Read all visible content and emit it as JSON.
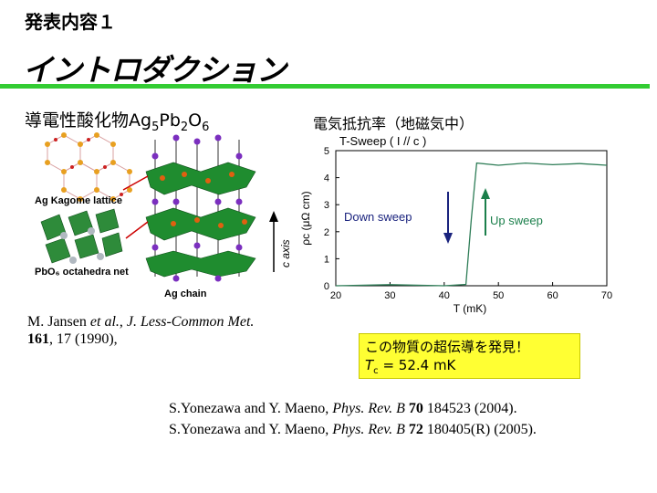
{
  "header": {
    "label": "発表内容１"
  },
  "slide": {
    "title": "イントロダクション",
    "compound": {
      "prefix": "導電性酸化物",
      "formula": [
        [
          "Ag",
          "5"
        ],
        [
          "Pb",
          "2"
        ],
        [
          "O",
          "6"
        ]
      ]
    },
    "graph_title": "電気抵抗率（地磁気中）",
    "crystal_labels": {
      "kagome": "Ag Kagome lattice",
      "octahedra": "PbO₆ octahedra net",
      "c_axis": "c axis",
      "chain": "Ag chain"
    },
    "reference_jansen": {
      "authors": "M. Jansen ",
      "etal": "et al.",
      "sep1": ", ",
      "journal": "J. Less-Common Met.",
      "volume": "161",
      "rest": ", 17 (1990),"
    },
    "highlight": {
      "line1": "この物質の超伝導を発見！",
      "tc_symbol": "T",
      "tc_sub": "c",
      "tc_value": " = 52.4 mK"
    },
    "references": [
      {
        "authors": "S.Yonezawa and Y. Maeno, ",
        "journal": "Phys. Rev. B",
        "volume": " 70",
        "rest": " 184523 (2004)."
      },
      {
        "authors": "S.Yonezawa and Y. Maeno, ",
        "journal": "Phys. Rev. B",
        "volume": " 72",
        "rest": " 180405(R) (2005)."
      }
    ]
  },
  "chart_data": {
    "type": "line",
    "title": "T-Sweep ( I // c )",
    "xlabel": "T (mK)",
    "ylabel": "ρc (μΩ cm)",
    "xlim": [
      20,
      70
    ],
    "ylim": [
      0,
      5
    ],
    "xticks": [
      20,
      30,
      40,
      50,
      60,
      70
    ],
    "yticks": [
      0,
      1,
      2,
      3,
      4,
      5
    ],
    "annotations": [
      "Down sweep",
      "Up sweep"
    ],
    "colors": {
      "down": "#1a237e",
      "up": "#1b7f4b",
      "curve": "#2e7d57"
    },
    "series": [
      {
        "x": [
          20,
          30,
          40,
          44,
          45,
          46,
          50,
          55,
          60,
          65,
          70
        ],
        "y": [
          0.02,
          0.02,
          0.02,
          0.03,
          2.5,
          4.5,
          4.5,
          4.5,
          4.52,
          4.48,
          4.5
        ]
      }
    ]
  }
}
